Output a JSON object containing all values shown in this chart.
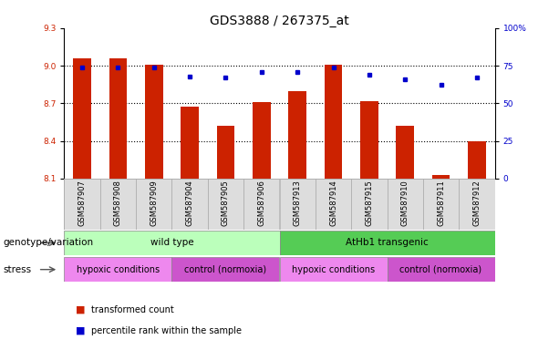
{
  "title": "GDS3888 / 267375_at",
  "samples": [
    "GSM587907",
    "GSM587908",
    "GSM587909",
    "GSM587904",
    "GSM587905",
    "GSM587906",
    "GSM587913",
    "GSM587914",
    "GSM587915",
    "GSM587910",
    "GSM587911",
    "GSM587912"
  ],
  "bar_values": [
    9.06,
    9.06,
    9.01,
    8.67,
    8.52,
    8.71,
    8.8,
    9.01,
    8.72,
    8.52,
    8.13,
    8.4
  ],
  "percentile_values": [
    74,
    74,
    74,
    68,
    67,
    71,
    71,
    74,
    69,
    66,
    62,
    67
  ],
  "ylim_left": [
    8.1,
    9.3
  ],
  "ylim_right": [
    0,
    100
  ],
  "yticks_left": [
    8.1,
    8.4,
    8.7,
    9.0,
    9.3
  ],
  "yticks_right": [
    0,
    25,
    50,
    75,
    100
  ],
  "ytick_labels_right": [
    "0",
    "25",
    "50",
    "75",
    "100%"
  ],
  "bar_color": "#cc2200",
  "dot_color": "#0000cc",
  "bar_bottom": 8.1,
  "bar_width": 0.5,
  "genotype_labels": [
    "wild type",
    "AtHb1 transgenic"
  ],
  "genotype_color_light": "#bbffbb",
  "genotype_color_dark": "#55cc55",
  "stress_labels": [
    "hypoxic conditions",
    "control (normoxia)",
    "hypoxic conditions",
    "control (normoxia)"
  ],
  "stress_color_hypoxic": "#ee88ee",
  "stress_color_control": "#cc55cc",
  "legend_items": [
    "transformed count",
    "percentile rank within the sample"
  ],
  "genotype_label_x": "genotype/variation",
  "stress_label_x": "stress",
  "background_color": "#ffffff",
  "title_fontsize": 10,
  "tick_fontsize": 6.5,
  "label_fontsize": 7.5,
  "sample_fontsize": 6,
  "grid_yticks": [
    9.0,
    8.7,
    8.4
  ]
}
